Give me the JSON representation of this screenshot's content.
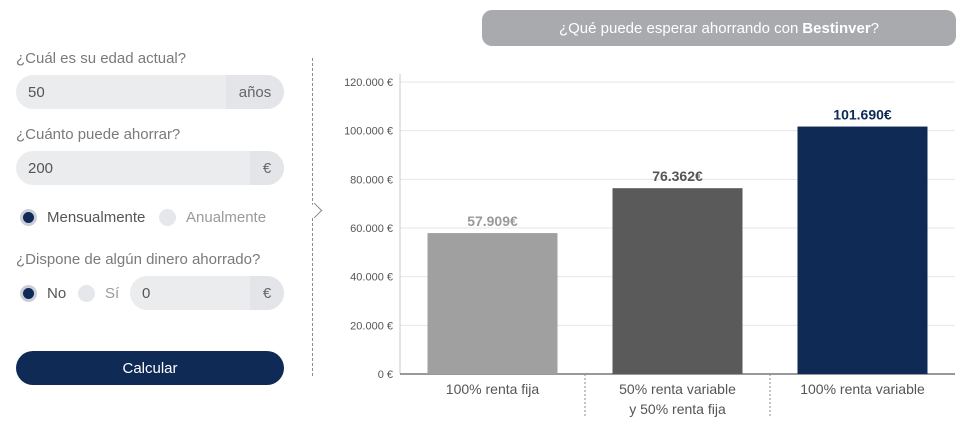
{
  "header": {
    "prefix": "¿Qué puede esperar ahorrando con",
    "brand": "Bestinver",
    "suffix": "?"
  },
  "form": {
    "age_label": "¿Cuál es su edad actual?",
    "age_value": "50",
    "age_unit": "años",
    "save_label": "¿Cuánto puede ahorrar?",
    "save_value": "200",
    "save_unit": "€",
    "freq_monthly": "Mensualmente",
    "freq_yearly": "Anualmente",
    "savings_label": "¿Dispone de algún dinero ahorrado?",
    "savings_no": "No",
    "savings_yes": "Sí",
    "savings_value": "0",
    "savings_unit": "€",
    "calc_label": "Calcular"
  },
  "colors": {
    "navy": "#0e2a55",
    "dark_gray": "#5a5a5a",
    "light_gray": "#a0a0a0",
    "pill": "#a8aaae"
  },
  "chart_data": {
    "type": "bar",
    "categories": [
      [
        "100% renta fija"
      ],
      [
        "50% renta variable",
        "y 50% renta fija"
      ],
      [
        "100% renta variable"
      ]
    ],
    "values": [
      57909,
      76362,
      101690
    ],
    "value_labels": [
      "57.909€",
      "76.362€",
      "101.690€"
    ],
    "bar_colors": [
      "#a0a0a0",
      "#5a5a5a",
      "#0e2a55"
    ],
    "label_colors": [
      "#999999",
      "#555555",
      "#0e2a55"
    ],
    "ylim": [
      0,
      120000
    ],
    "yticks": [
      0,
      20000,
      40000,
      60000,
      80000,
      100000,
      120000
    ],
    "ytick_labels": [
      "0 €",
      "20.000 €",
      "40.000 €",
      "60.000 €",
      "80.000 €",
      "100.000 €",
      "120.000 €"
    ],
    "grid": true
  }
}
